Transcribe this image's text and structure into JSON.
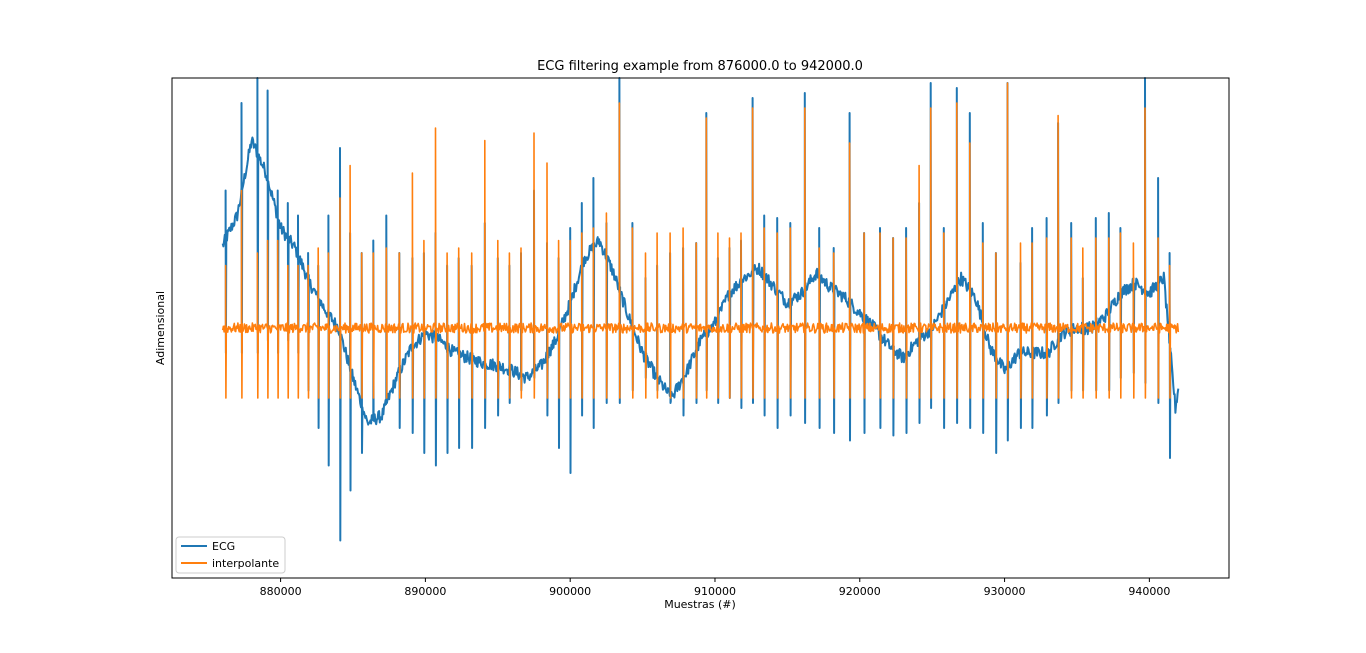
{
  "chart_data": {
    "type": "line",
    "title": "ECG filtering example from 876000.0 to 942000.0",
    "xlabel": "Muestras (#)",
    "ylabel": "Adimensional",
    "xlim": [
      872500,
      945500
    ],
    "ylim": [
      -1.0,
      1.0
    ],
    "x_ticks": [
      880000,
      890000,
      900000,
      910000,
      920000,
      930000,
      940000
    ],
    "x_tick_labels": [
      "880000",
      "890000",
      "900000",
      "910000",
      "920000",
      "930000",
      "940000"
    ],
    "y_ticks_shown": false,
    "grid": false,
    "legend_position": "lower-left",
    "series": [
      {
        "name": "ECG",
        "color": "#1f77b4",
        "baseline_x": [
          876000,
          877000,
          878000,
          879000,
          880000,
          881000,
          882000,
          883000,
          884000,
          885000,
          886000,
          887000,
          888000,
          889000,
          890000,
          891000,
          892000,
          893000,
          894000,
          895000,
          896000,
          897000,
          898000,
          899000,
          900000,
          901000,
          902000,
          903000,
          904000,
          905000,
          906000,
          907000,
          908000,
          909000,
          910000,
          911000,
          912000,
          913000,
          914000,
          915000,
          916000,
          917000,
          918000,
          919000,
          920000,
          921000,
          922000,
          923000,
          924000,
          925000,
          926000,
          927000,
          928000,
          929000,
          930000,
          931000,
          932000,
          933000,
          934000,
          935000,
          936000,
          937000,
          938000,
          939000,
          940000,
          941000,
          941800,
          942000
        ],
        "baseline_y": [
          0.33,
          0.45,
          0.75,
          0.62,
          0.4,
          0.32,
          0.18,
          0.08,
          0.0,
          -0.2,
          -0.38,
          -0.35,
          -0.2,
          -0.08,
          -0.02,
          -0.05,
          -0.1,
          -0.12,
          -0.14,
          -0.15,
          -0.17,
          -0.2,
          -0.15,
          -0.05,
          0.1,
          0.28,
          0.35,
          0.22,
          0.05,
          -0.1,
          -0.2,
          -0.28,
          -0.18,
          -0.05,
          0.02,
          0.14,
          0.2,
          0.24,
          0.17,
          0.1,
          0.14,
          0.22,
          0.16,
          0.12,
          0.06,
          0.0,
          -0.07,
          -0.12,
          -0.05,
          0.0,
          0.1,
          0.2,
          0.12,
          -0.08,
          -0.17,
          -0.1,
          -0.1,
          -0.1,
          -0.02,
          0.0,
          0.0,
          0.05,
          0.14,
          0.18,
          0.14,
          0.2,
          -0.32,
          -0.24
        ],
        "beat_x": [
          876200,
          877300,
          878400,
          879100,
          879800,
          880500,
          881200,
          881900,
          882600,
          883300,
          884100,
          884800,
          885600,
          886400,
          887300,
          888200,
          889100,
          889900,
          890700,
          891500,
          892300,
          893200,
          894100,
          895000,
          895800,
          896600,
          897500,
          898400,
          899200,
          900000,
          900800,
          901600,
          902500,
          903400,
          904300,
          905200,
          906000,
          906900,
          907800,
          908700,
          909400,
          910200,
          911000,
          911800,
          912600,
          913400,
          914300,
          915200,
          916200,
          917200,
          918200,
          919300,
          920300,
          921400,
          922300,
          923200,
          924100,
          924900,
          925800,
          926700,
          927600,
          928500,
          929400,
          930200,
          931100,
          931900,
          932900,
          933700,
          934600,
          935400,
          936300,
          937200,
          938000,
          938900,
          939700,
          940600,
          941400
        ],
        "beat_peak": [
          0.55,
          0.9,
          1.0,
          0.95,
          0.55,
          0.5,
          0.45,
          0.3,
          0.25,
          0.45,
          0.72,
          0.38,
          0.3,
          0.35,
          0.45,
          0.3,
          0.28,
          0.3,
          0.38,
          0.25,
          0.28,
          0.25,
          0.42,
          0.28,
          0.25,
          0.3,
          0.55,
          0.34,
          0.28,
          0.4,
          0.5,
          0.6,
          0.42,
          1.0,
          0.42,
          0.2,
          0.25,
          0.3,
          0.32,
          0.34,
          0.86,
          0.28,
          0.32,
          0.35,
          0.92,
          0.45,
          0.44,
          0.42,
          0.94,
          0.4,
          0.32,
          0.86,
          0.38,
          0.4,
          0.36,
          0.4,
          0.5,
          0.98,
          0.4,
          0.96,
          0.86,
          0.42,
          0.3,
          0.98,
          0.26,
          0.4,
          0.44,
          0.82,
          0.42,
          0.2,
          0.44,
          0.46,
          0.4,
          0.2,
          1.0,
          0.6,
          0.3
        ],
        "beat_trough": [
          -0.1,
          -0.1,
          -0.1,
          -0.05,
          -0.1,
          -0.05,
          -0.1,
          -0.25,
          -0.4,
          -0.55,
          -0.85,
          -0.65,
          -0.5,
          -0.35,
          -0.3,
          -0.4,
          -0.42,
          -0.5,
          -0.55,
          -0.5,
          -0.48,
          -0.48,
          -0.4,
          -0.35,
          -0.3,
          -0.25,
          -0.2,
          -0.35,
          -0.48,
          -0.58,
          -0.35,
          -0.4,
          -0.3,
          -0.3,
          -0.25,
          -0.2,
          -0.25,
          -0.3,
          -0.35,
          -0.3,
          -0.25,
          -0.3,
          -0.28,
          -0.32,
          -0.3,
          -0.35,
          -0.4,
          -0.35,
          -0.38,
          -0.4,
          -0.42,
          -0.45,
          -0.42,
          -0.4,
          -0.43,
          -0.42,
          -0.38,
          -0.32,
          -0.4,
          -0.38,
          -0.4,
          -0.42,
          -0.5,
          -0.45,
          -0.4,
          -0.4,
          -0.35,
          -0.3,
          -0.25,
          -0.25,
          -0.25,
          -0.25,
          -0.2,
          -0.18,
          -0.22,
          -0.3,
          -0.52
        ]
      },
      {
        "name": "interpolante",
        "color": "#ff7f0e",
        "baseline_y": 0.0,
        "beat_x": [
          876200,
          877300,
          878400,
          879100,
          879800,
          880500,
          881200,
          881900,
          882600,
          883300,
          884100,
          884800,
          885600,
          886400,
          887300,
          888200,
          889100,
          889900,
          890700,
          891500,
          892300,
          893200,
          894100,
          895000,
          895800,
          896600,
          897500,
          898400,
          899200,
          900000,
          900800,
          901600,
          902500,
          903400,
          904300,
          905200,
          906000,
          906900,
          907800,
          908700,
          909400,
          910200,
          911000,
          911800,
          912600,
          913400,
          914300,
          915200,
          916200,
          917200,
          918200,
          919300,
          920300,
          921400,
          922300,
          923200,
          924100,
          924900,
          925800,
          926700,
          927600,
          928500,
          929400,
          930200,
          931100,
          931900,
          932900,
          933700,
          934600,
          935400,
          936300,
          937200,
          938000,
          938900,
          939700,
          940600,
          941400
        ],
        "beat_peak": [
          0.25,
          0.55,
          0.3,
          0.35,
          0.35,
          0.25,
          0.25,
          0.25,
          0.32,
          0.3,
          0.52,
          0.65,
          0.3,
          0.3,
          0.32,
          0.3,
          0.62,
          0.35,
          0.8,
          0.3,
          0.32,
          0.3,
          0.75,
          0.35,
          0.3,
          0.32,
          0.78,
          0.66,
          0.35,
          0.35,
          0.38,
          0.4,
          0.46,
          0.9,
          0.4,
          0.3,
          0.38,
          0.38,
          0.4,
          0.34,
          0.84,
          0.38,
          0.36,
          0.38,
          0.88,
          0.4,
          0.38,
          0.4,
          0.88,
          0.32,
          0.3,
          0.74,
          0.38,
          0.38,
          0.36,
          0.36,
          0.65,
          0.88,
          0.38,
          0.9,
          0.74,
          0.34,
          0.3,
          0.98,
          0.34,
          0.34,
          0.36,
          0.85,
          0.36,
          0.32,
          0.36,
          0.36,
          0.38,
          0.34,
          0.88,
          0.36,
          0.25
        ],
        "beat_trough": -0.28
      }
    ]
  }
}
